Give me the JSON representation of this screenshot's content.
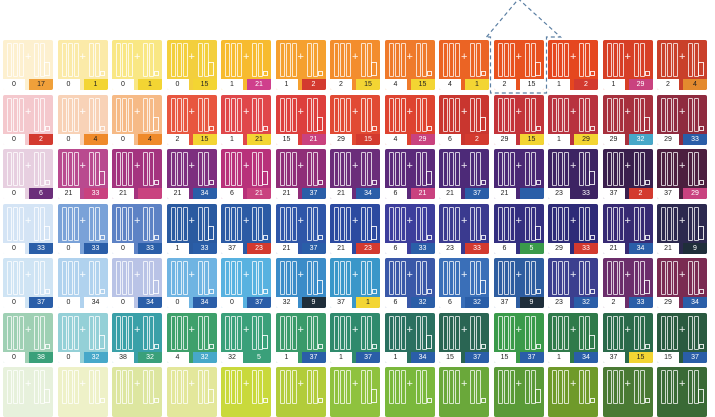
{
  "palette": {
    "columns": 13,
    "rows": [
      {
        "colors": [
          "#fdf0cf",
          "#fbeaa8",
          "#f9e784",
          "#f3cf3d",
          "#f7bb2f",
          "#f5a02f",
          "#f38d2d",
          "#ef7a2b",
          "#eb6424",
          "#e8521f",
          "#e5471f",
          "#d73f26",
          "#c9402a"
        ],
        "left_labels": [
          "0",
          "0",
          "0",
          "0",
          "1",
          "1",
          "2",
          "4",
          "4",
          "2",
          "1",
          "1",
          "2"
        ],
        "right_labels": [
          "17",
          "1",
          "1",
          "15",
          "21",
          "2",
          "15",
          "15",
          "1",
          "15",
          "2",
          "29",
          "4"
        ],
        "right_chip_colors": [
          "#f0a03a",
          "#f3d533",
          "#f3d533",
          "#f3d533",
          "#cf3f8c",
          "#d33a2f",
          "#f3d533",
          "#f3d533",
          "#f3d533",
          "#ffffff",
          "#d33a2f",
          "#c9427f",
          "#e48a2e"
        ]
      },
      {
        "colors": [
          "#f4c8cd",
          "#f8d2b7",
          "#f6ba86",
          "#e8563f",
          "#e0474a",
          "#dd3f3d",
          "#e14a34",
          "#de4330",
          "#c9362f",
          "#c3343a",
          "#b8323f",
          "#a7303d",
          "#8f2b3f"
        ],
        "left_labels": [
          "0",
          "0",
          "0",
          "2",
          "1",
          "15",
          "29",
          "4",
          "6",
          "29",
          "1",
          "29",
          "29"
        ],
        "right_labels": [
          "2",
          "4",
          "4",
          "15",
          "21",
          "21",
          "15",
          "29",
          "2",
          "15",
          "29",
          "32",
          "33"
        ],
        "right_chip_colors": [
          "#d33a2f",
          "#ef8a2b",
          "#ef8a2b",
          "#f3d533",
          "#f3d533",
          "#c9427f",
          "#d33a2f",
          "#c9427f",
          "#d33a2f",
          "#f3d533",
          "#f3d533",
          "#47a8c9",
          "#2a5ea8"
        ]
      },
      {
        "colors": [
          "#e7cfe0",
          "#b94a8f",
          "#a4347f",
          "#7d2f7f",
          "#b8317a",
          "#8f2e78",
          "#6b2e7a",
          "#5b2a7a",
          "#4d2a78",
          "#4a2775",
          "#3d2463",
          "#3a1f4d",
          "#4c1f3f"
        ],
        "left_labels": [
          "0",
          "21",
          "21",
          "21",
          "6",
          "21",
          "21",
          "6",
          "21",
          "21",
          "23",
          "37",
          "37"
        ],
        "right_labels": [
          "6",
          "33",
          "",
          "34",
          "21",
          "37",
          "34",
          "21",
          "37",
          "",
          "33",
          "2",
          "29"
        ],
        "right_chip_colors": [
          "#6b2e7a",
          "#c9427f",
          "#c9427f",
          "#2a5ea8",
          "#c9427f",
          "#2a5ea8",
          "#2a5ea8",
          "#c9427f",
          "#2a5ea8",
          "#2a5ea8",
          "#3d2463",
          "#d33a2f",
          "#c9427f"
        ]
      },
      {
        "colors": [
          "#d4e4f5",
          "#7aa2d8",
          "#5d82c5",
          "#2a5aa0",
          "#2c5ba5",
          "#2f56a8",
          "#2c4aa0",
          "#3d3e9c",
          "#3a3a8f",
          "#342f80",
          "#2e2b78",
          "#372a73",
          "#2c294f"
        ],
        "left_labels": [
          "0",
          "0",
          "0",
          "1",
          "37",
          "21",
          "21",
          "6",
          "23",
          "6",
          "29",
          "21",
          "21"
        ],
        "right_labels": [
          "33",
          "33",
          "33",
          "33",
          "23",
          "37",
          "23",
          "33",
          "33",
          "5",
          "33",
          "34",
          "9"
        ],
        "right_chip_colors": [
          "#2a5ea8",
          "#2a5ea8",
          "#2a5ea8",
          "#2a5ea8",
          "#d33a2f",
          "#2a5ea8",
          "#d33a2f",
          "#2a5ea8",
          "#d33a2f",
          "#3a9a4a",
          "#d33a2f",
          "#2a5ea8",
          "#1f2e3a"
        ]
      },
      {
        "colors": [
          "#cfe4f4",
          "#b0d2ee",
          "#b9c3e6",
          "#6fb4e2",
          "#58b2e0",
          "#3b8cc8",
          "#3a97c9",
          "#3a58a8",
          "#3a6fb8",
          "#2e5da0",
          "#3c3f8f",
          "#6b2e6b",
          "#7a2b52"
        ],
        "left_labels": [
          "0",
          "0",
          "0",
          "0",
          "0",
          "32",
          "37",
          "6",
          "6",
          "37",
          "23",
          "2",
          "29"
        ],
        "right_labels": [
          "37",
          "34",
          "34",
          "34",
          "37",
          "9",
          "1",
          "32",
          "32",
          "9",
          "32",
          "33",
          "34"
        ],
        "right_chip_colors": [
          "#2a5ea8",
          "#ffffff",
          "#2a5ea8",
          "#2a5ea8",
          "#2a5ea8",
          "#1f2e3a",
          "#f3d533",
          "#2a5ea8",
          "#2a5ea8",
          "#1f2e3a",
          "#2a5ea8",
          "#2a5ea8",
          "#2a5ea8"
        ]
      },
      {
        "colors": [
          "#9fd0b4",
          "#94d0d7",
          "#3aa0a8",
          "#3ea06b",
          "#3aa07a",
          "#3a9a6a",
          "#2f8a6d",
          "#2a7060",
          "#2a6553",
          "#3a9a4a",
          "#2f7a4a",
          "#2a6a4a",
          "#2a5a40"
        ],
        "left_labels": [
          "0",
          "0",
          "38",
          "4",
          "32",
          "1",
          "1",
          "1",
          "15",
          "15",
          "1",
          "37",
          "15"
        ],
        "right_labels": [
          "38",
          "32",
          "32",
          "32",
          "5",
          "37",
          "37",
          "34",
          "37",
          "37",
          "34",
          "15",
          "37"
        ],
        "right_chip_colors": [
          "#3aa07a",
          "#47a8c9",
          "#3aa07a",
          "#47a8c9",
          "#3aa07a",
          "#2a5ea8",
          "#2a5ea8",
          "#2a5ea8",
          "#2a5ea8",
          "#2a5ea8",
          "#2a5ea8",
          "#f3d533",
          "#2a5ea8"
        ]
      },
      {
        "colors": [
          "#e7f1dc",
          "#eef1c8",
          "#dde6a0",
          "#e3e79b",
          "#c9d93c",
          "#b2cc3a",
          "#8fc23e",
          "#7ab83c",
          "#6aa83a",
          "#5a9a38",
          "#6f9a2a",
          "#4a7a34",
          "#3a6a36"
        ],
        "left_labels": [
          "",
          "",
          "",
          "",
          "",
          "",
          "",
          "",
          "",
          "",
          "",
          "",
          ""
        ],
        "right_labels": [
          "",
          "",
          "",
          "",
          "",
          "",
          "",
          "",
          "",
          "",
          "",
          "",
          ""
        ],
        "right_chip_colors": [
          "#ffffff",
          "#ffffff",
          "#ffffff",
          "#ffffff",
          "#ffffff",
          "#ffffff",
          "#ffffff",
          "#ffffff",
          "#ffffff",
          "#ffffff",
          "#ffffff",
          "#ffffff",
          "#ffffff"
        ]
      }
    ],
    "selected": {
      "row": 0,
      "col": 9
    },
    "selection_color": "#5b7fa3"
  }
}
